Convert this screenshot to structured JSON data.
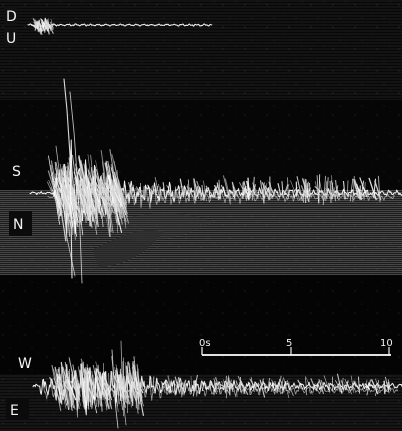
{
  "components": {
    "vertical": {
      "top_label": "D",
      "bottom_label": "U"
    },
    "north_south": {
      "top_label": "S",
      "bottom_label": "N"
    },
    "east_west": {
      "top_label": "W",
      "bottom_label": "E"
    }
  },
  "time_scale": {
    "labels": [
      "0s",
      "5",
      "10"
    ]
  },
  "colors": {
    "background": "#050505",
    "trace": "#ffffff",
    "trace_dim": "#d8d8d8",
    "label_box": "#0b0b0b"
  }
}
